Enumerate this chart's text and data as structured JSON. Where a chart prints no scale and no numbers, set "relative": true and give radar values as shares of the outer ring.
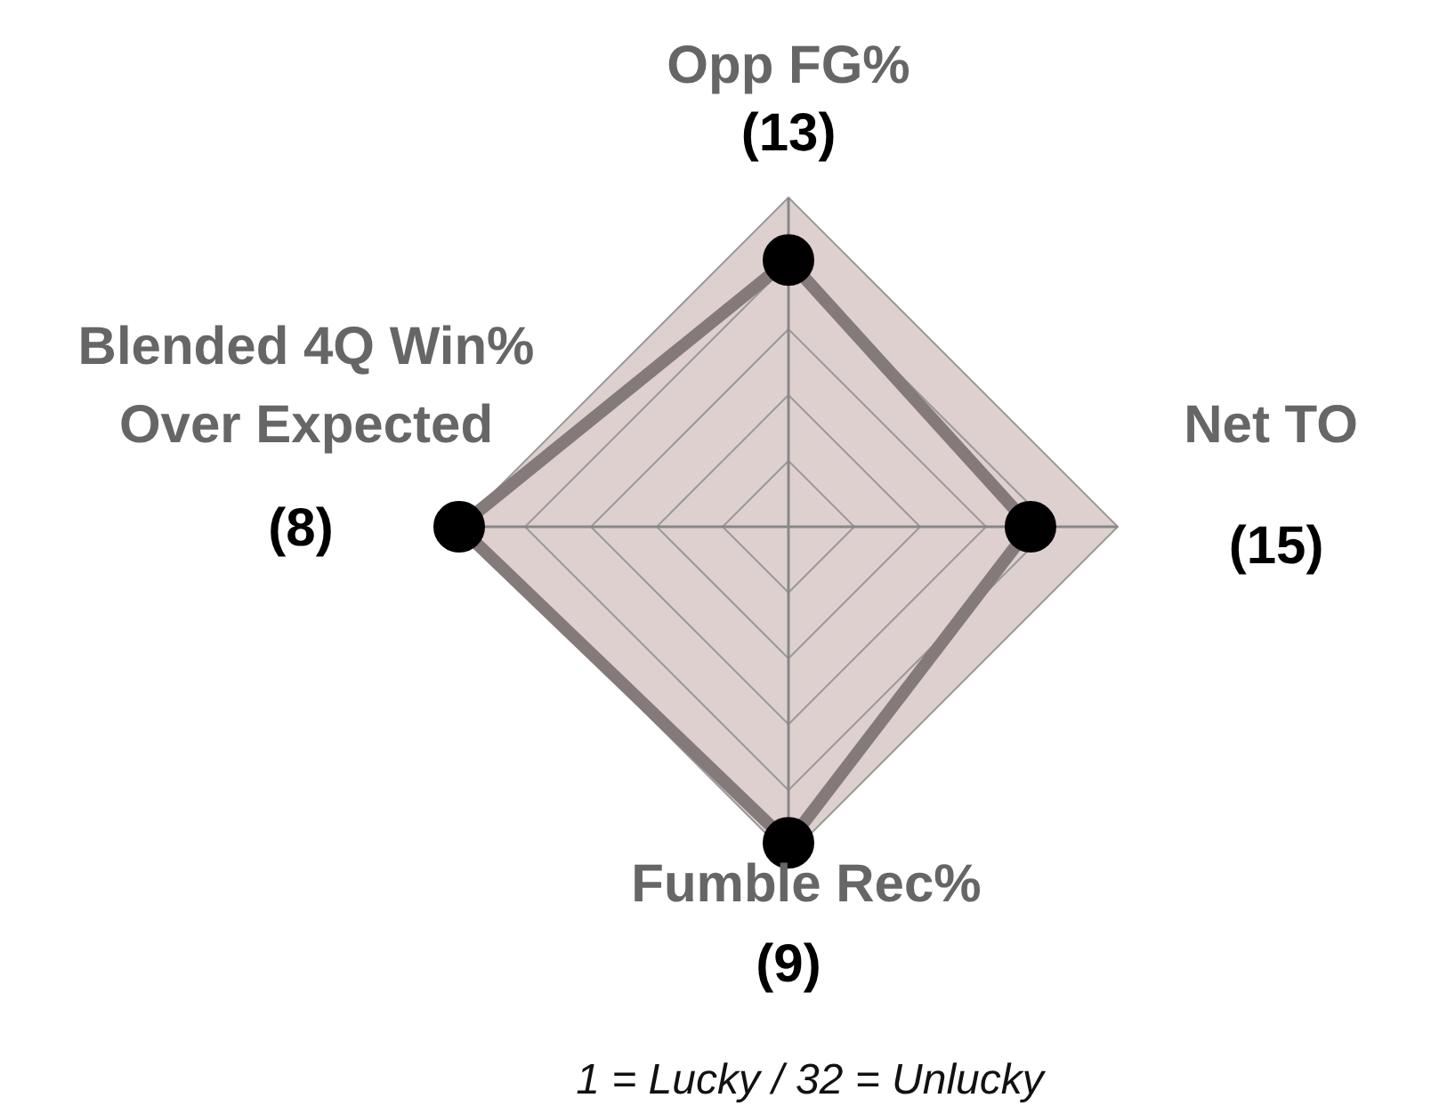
{
  "chart_data": {
    "type": "radar",
    "relative": true,
    "categories": [
      "Opp FG%",
      "Net TO",
      "Fumble Rec%",
      "Blended 4Q Win% Over Expected"
    ],
    "value_labels": [
      "(13)",
      "(15)",
      "(9)",
      "(8)"
    ],
    "marker": "circle",
    "grid": true,
    "annotations": [
      "1 = Lucky / 32 = Unlucky"
    ],
    "series": [
      {
        "color": "#857a7a",
        "values": [
          0.81,
          0.735,
          0.96,
          1
        ]
      }
    ]
  }
}
